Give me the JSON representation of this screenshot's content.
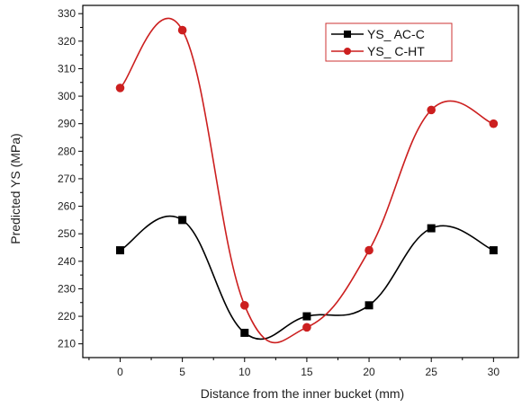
{
  "chart_data": {
    "type": "line",
    "xlabel": "Distance from the inner bucket (mm)",
    "ylabel": "Predicted YS (MPa)",
    "xlim": [
      -3,
      32
    ],
    "ylim": [
      205,
      333
    ],
    "xticks": [
      0,
      5,
      10,
      15,
      20,
      25,
      30
    ],
    "yticks": [
      210,
      220,
      230,
      240,
      250,
      260,
      270,
      280,
      290,
      300,
      310,
      320,
      330
    ],
    "grid": false,
    "legend_position": "top-right",
    "series": [
      {
        "name": "YS_ AC-C",
        "color": "#000000",
        "marker": "square",
        "x": [
          0,
          5,
          10,
          15,
          20,
          25,
          30
        ],
        "y": [
          244,
          255,
          214,
          220,
          224,
          252,
          244
        ]
      },
      {
        "name": "YS_ C-HT",
        "color": "#cc1f1f",
        "marker": "circle",
        "x": [
          0,
          5,
          10,
          15,
          20,
          25,
          30
        ],
        "y": [
          303,
          324,
          224,
          216,
          244,
          295,
          290
        ]
      }
    ]
  }
}
